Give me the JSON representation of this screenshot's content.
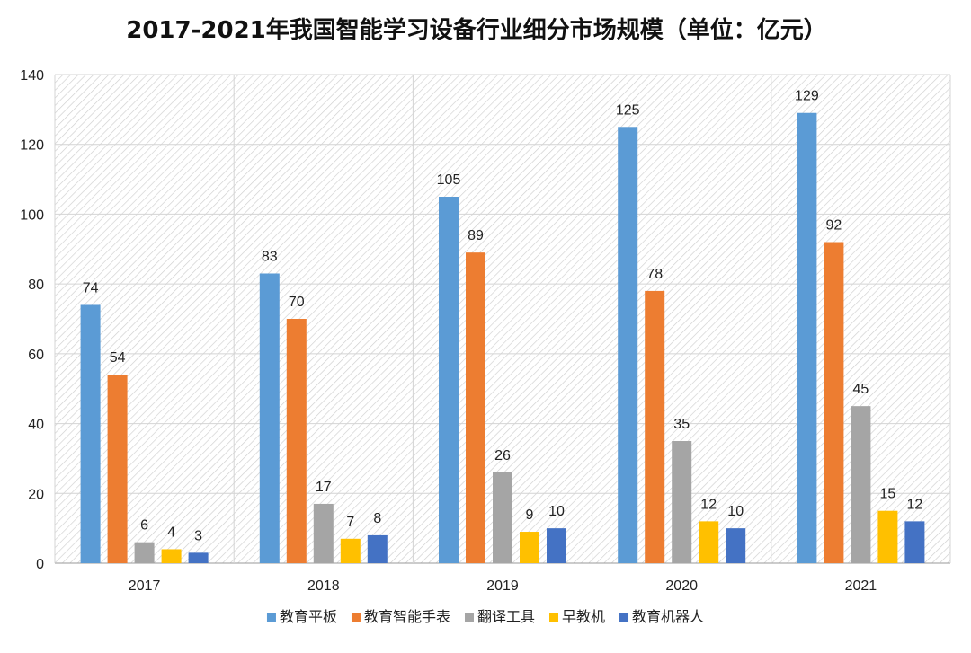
{
  "chart_data": {
    "type": "bar",
    "title": "2017-2021年我国智能学习设备行业细分市场规模（单位：亿元）",
    "xlabel": "",
    "ylabel": "",
    "categories": [
      "2017",
      "2018",
      "2019",
      "2020",
      "2021"
    ],
    "ylim": [
      0,
      140
    ],
    "yticks": [
      0,
      20,
      40,
      60,
      80,
      100,
      120,
      140
    ],
    "grid": true,
    "legend_position": "bottom",
    "series": [
      {
        "name": "教育平板",
        "color": "#5B9BD5",
        "values": [
          74,
          83,
          105,
          125,
          129
        ]
      },
      {
        "name": "教育智能手表",
        "color": "#ED7D31",
        "values": [
          54,
          70,
          89,
          78,
          92
        ]
      },
      {
        "name": "翻译工具",
        "color": "#A5A5A5",
        "values": [
          6,
          17,
          26,
          35,
          45
        ]
      },
      {
        "name": "早教机",
        "color": "#FFC000",
        "values": [
          4,
          7,
          9,
          12,
          15
        ]
      },
      {
        "name": "教育机器人",
        "color": "#4472C4",
        "values": [
          3,
          8,
          10,
          10,
          12
        ]
      }
    ]
  }
}
